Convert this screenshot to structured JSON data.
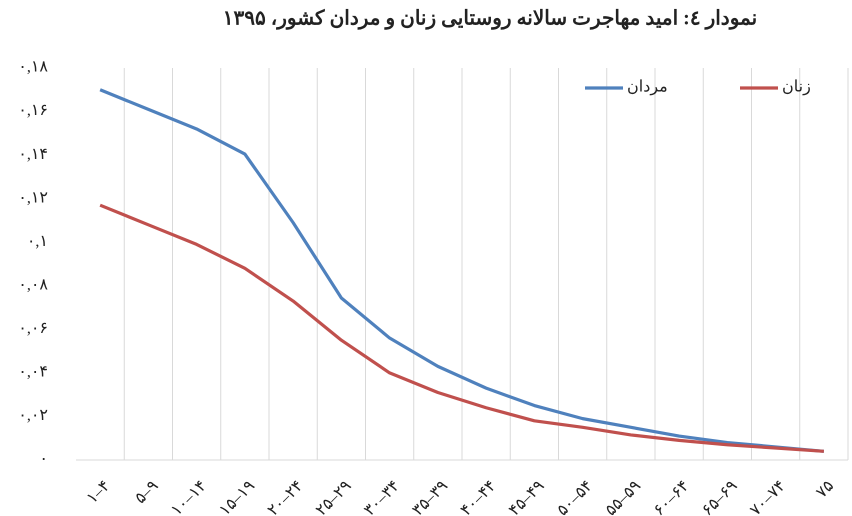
{
  "chart_data": {
    "type": "line",
    "title": "نمودار ٤: امید مهاجرت سالانه روستایی زنان و مردان کشور، ۱۳۹۵",
    "categories": [
      "۱–۴",
      "۵–۹",
      "۱۰–۱۴",
      "۱۵–۱۹",
      "۲۰–۲۴",
      "۲۵–۲۹",
      "۳۰–۳۴",
      "۳۵–۳۹",
      "۴۰–۴۴",
      "۴۵–۴۹",
      "۵۰–۵۴",
      "۵۵–۵۹",
      "۶۰–۶۴",
      "۶۵–۶۹",
      "۷۰–۷۴",
      "۷۵"
    ],
    "series": [
      {
        "name": "مردان",
        "color": "#4f81bd",
        "values": [
          0.17,
          0.161,
          0.152,
          0.1405,
          0.109,
          0.0744,
          0.056,
          0.043,
          0.033,
          0.025,
          0.019,
          0.015,
          0.011,
          0.008,
          0.006,
          0.004
        ]
      },
      {
        "name": "زنان",
        "color": "#c0504d",
        "values": [
          0.117,
          0.108,
          0.099,
          0.088,
          0.073,
          0.055,
          0.04,
          0.031,
          0.024,
          0.018,
          0.015,
          0.0115,
          0.009,
          0.007,
          0.0055,
          0.004
        ]
      }
    ],
    "ylim": [
      0,
      0.18
    ],
    "yticks": [
      {
        "value": 0,
        "label": "۰"
      },
      {
        "value": 0.02,
        "label": "۰,۰۲"
      },
      {
        "value": 0.04,
        "label": "۰,۰۴"
      },
      {
        "value": 0.06,
        "label": "۰,۰۶"
      },
      {
        "value": 0.08,
        "label": "۰,۰۸"
      },
      {
        "value": 0.1,
        "label": "۰,۱"
      },
      {
        "value": 0.12,
        "label": "۰,۱۲"
      },
      {
        "value": 0.14,
        "label": "۰,۱۴"
      },
      {
        "value": 0.16,
        "label": "۰,۱۶"
      },
      {
        "value": 0.18,
        "label": "۰,۱۸"
      }
    ],
    "grid": true,
    "legend": "top-right"
  }
}
